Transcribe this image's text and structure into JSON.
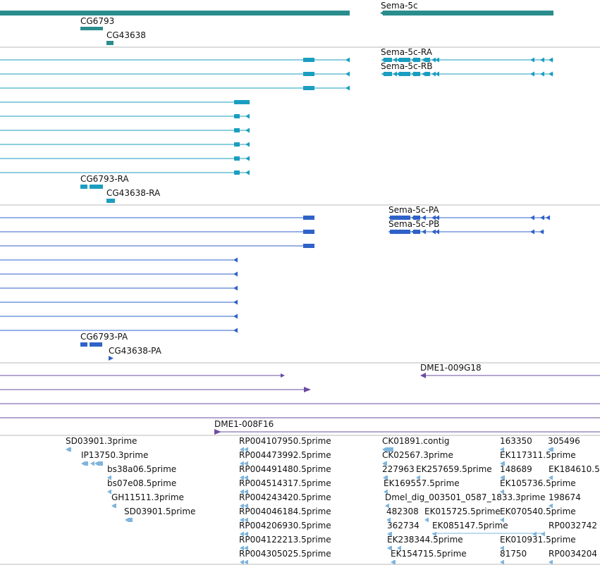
{
  "colors": {
    "gene": "#2a8d8d",
    "transcript": "#1a9ec0",
    "protein": "#2f62c8",
    "clone": "#6a4ea0",
    "est": "#7fb5dd",
    "divider": "#b8b8b8"
  },
  "tracks": {
    "genes": {
      "labels": [
        "Sema-5c",
        "CG6793",
        "CG43638"
      ]
    },
    "transcripts": {
      "labels": [
        "Sema-5c-RA",
        "Sema-5c-RB",
        "CG6793-RA",
        "CG43638-RA"
      ]
    },
    "proteins": {
      "labels": [
        "Sema-5c-PA",
        "Sema-5c-PB",
        "CG6793-PA",
        "CG43638-PA"
      ]
    },
    "clones": {
      "labels": [
        "DME1-009G18",
        "DME1-008F16"
      ]
    },
    "ests": {
      "labels": [
        "SD03901.3prime",
        "IP13750.3prime",
        "bs38a06.5prime",
        "bs07e08.5prime",
        "GH11511.3prime",
        "SD03901.5prime",
        "RP004107950.5prime",
        "RP004473992.5prime",
        "RP004491480.5prime",
        "RP004514317.5prime",
        "RP004243420.5prime",
        "RP004046184.5prime",
        "RP004206930.5prime",
        "RP004122213.5prime",
        "RP004305025.5prime",
        "CK01891.contig",
        "CK02567.3prime",
        "227963",
        "EK257659.5prime",
        "EK169557.5prime",
        "Dmel_dig_003501_0587_1833.3prime",
        "482308",
        "EK015725.5prime",
        "362734",
        "EK085147.5prime",
        "EK238344.5prime",
        "EK154715.5prime",
        "163350",
        "305496",
        "EK117311.5prime",
        "148689",
        "EK184610.5",
        "EK105736.5prime",
        "198674",
        "EK070540.5prime",
        "RP0032742",
        "EK010931.5prime",
        "81750",
        "RP0034204"
      ]
    }
  }
}
